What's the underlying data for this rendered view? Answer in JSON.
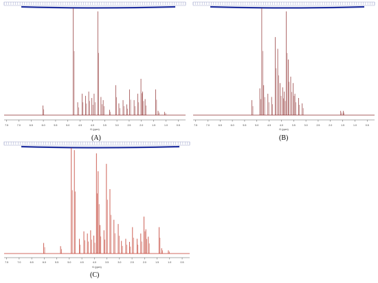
{
  "chart_data": [
    {
      "type": "line",
      "label": "(A)",
      "xlabel": "f1 (ppm)",
      "xlim": [
        7.6,
        0.2
      ],
      "x_reversed": true,
      "x_ticks": [
        "7.5",
        "7.0",
        "6.5",
        "6.0",
        "5.5",
        "5.0",
        "4.5",
        "4.0",
        "3.5",
        "3.0",
        "2.5",
        "2.0",
        "1.5",
        "1.0",
        "0.5"
      ],
      "line_color": "#8b2a2a",
      "integration_bar_color": "#1f2f9f",
      "peaks": [
        {
          "ppm": 6.02,
          "height": 0.09
        },
        {
          "ppm": 4.78,
          "height": 1.0
        },
        {
          "ppm": 4.6,
          "height": 0.12
        },
        {
          "ppm": 4.42,
          "height": 0.2
        },
        {
          "ppm": 4.28,
          "height": 0.18
        },
        {
          "ppm": 4.15,
          "height": 0.22
        },
        {
          "ppm": 4.02,
          "height": 0.16
        },
        {
          "ppm": 3.93,
          "height": 0.2
        },
        {
          "ppm": 3.78,
          "height": 0.97
        },
        {
          "ppm": 3.65,
          "height": 0.17
        },
        {
          "ppm": 3.56,
          "height": 0.14
        },
        {
          "ppm": 3.3,
          "height": 0.05
        },
        {
          "ppm": 3.05,
          "height": 0.28
        },
        {
          "ppm": 2.92,
          "height": 0.11
        },
        {
          "ppm": 2.75,
          "height": 0.14
        },
        {
          "ppm": 2.6,
          "height": 0.1
        },
        {
          "ppm": 2.48,
          "height": 0.24
        },
        {
          "ppm": 2.3,
          "height": 0.14
        },
        {
          "ppm": 2.15,
          "height": 0.2
        },
        {
          "ppm": 2.02,
          "height": 0.34
        },
        {
          "ppm": 1.95,
          "height": 0.22
        },
        {
          "ppm": 1.85,
          "height": 0.15
        },
        {
          "ppm": 1.42,
          "height": 0.24
        },
        {
          "ppm": 1.32,
          "height": 0.04
        },
        {
          "ppm": 1.05,
          "height": 0.03
        }
      ]
    },
    {
      "type": "line",
      "label": "(B)",
      "xlabel": "f1 (ppm)",
      "xlim": [
        7.6,
        0.2
      ],
      "x_reversed": true,
      "x_ticks": [
        "7.5",
        "7.0",
        "6.5",
        "6.0",
        "5.5",
        "5.0",
        "4.5",
        "4.0",
        "3.5",
        "3.0",
        "2.5",
        "2.0",
        "1.5",
        "1.0",
        "0.5"
      ],
      "line_color": "#8b2a2a",
      "integration_bar_color": "#1f2f9f",
      "peaks": [
        {
          "ppm": 5.2,
          "height": 0.14
        },
        {
          "ppm": 4.88,
          "height": 0.25
        },
        {
          "ppm": 4.8,
          "height": 1.0
        },
        {
          "ppm": 4.72,
          "height": 0.28
        },
        {
          "ppm": 4.55,
          "height": 0.2
        },
        {
          "ppm": 4.4,
          "height": 0.17
        },
        {
          "ppm": 4.25,
          "height": 0.73
        },
        {
          "ppm": 4.15,
          "height": 0.62
        },
        {
          "ppm": 4.05,
          "height": 0.3
        },
        {
          "ppm": 3.95,
          "height": 0.26
        },
        {
          "ppm": 3.88,
          "height": 0.22
        },
        {
          "ppm": 3.8,
          "height": 0.97
        },
        {
          "ppm": 3.72,
          "height": 0.52
        },
        {
          "ppm": 3.62,
          "height": 0.36
        },
        {
          "ppm": 3.52,
          "height": 0.3
        },
        {
          "ppm": 3.45,
          "height": 0.2
        },
        {
          "ppm": 3.3,
          "height": 0.16
        },
        {
          "ppm": 3.15,
          "height": 0.11
        },
        {
          "ppm": 1.58,
          "height": 0.04
        },
        {
          "ppm": 1.48,
          "height": 0.04
        }
      ]
    },
    {
      "type": "line",
      "label": "(C)",
      "xlabel": "f1 (ppm)",
      "xlim": [
        7.6,
        0.2
      ],
      "x_reversed": true,
      "x_ticks": [
        "7.5",
        "7.0",
        "6.5",
        "6.0",
        "5.5",
        "5.0",
        "4.5",
        "4.0",
        "3.5",
        "3.0",
        "2.5",
        "2.0",
        "1.5",
        "1.0",
        "0.5"
      ],
      "line_color": "#c0392b",
      "integration_bar_color": "#1f2f9f",
      "peaks": [
        {
          "ppm": 6.02,
          "height": 0.1
        },
        {
          "ppm": 5.35,
          "height": 0.07
        },
        {
          "ppm": 4.92,
          "height": 1.0
        },
        {
          "ppm": 4.8,
          "height": 0.98
        },
        {
          "ppm": 4.6,
          "height": 0.14
        },
        {
          "ppm": 4.42,
          "height": 0.21
        },
        {
          "ppm": 4.28,
          "height": 0.19
        },
        {
          "ppm": 4.15,
          "height": 0.22
        },
        {
          "ppm": 4.02,
          "height": 0.17
        },
        {
          "ppm": 3.92,
          "height": 0.95
        },
        {
          "ppm": 3.85,
          "height": 0.78
        },
        {
          "ppm": 3.78,
          "height": 0.27
        },
        {
          "ppm": 3.62,
          "height": 0.22
        },
        {
          "ppm": 3.52,
          "height": 0.85
        },
        {
          "ppm": 3.38,
          "height": 0.61
        },
        {
          "ppm": 3.22,
          "height": 0.32
        },
        {
          "ppm": 3.05,
          "height": 0.28
        },
        {
          "ppm": 2.92,
          "height": 0.12
        },
        {
          "ppm": 2.75,
          "height": 0.14
        },
        {
          "ppm": 2.6,
          "height": 0.11
        },
        {
          "ppm": 2.48,
          "height": 0.25
        },
        {
          "ppm": 2.3,
          "height": 0.14
        },
        {
          "ppm": 2.15,
          "height": 0.19
        },
        {
          "ppm": 2.02,
          "height": 0.35
        },
        {
          "ppm": 1.95,
          "height": 0.23
        },
        {
          "ppm": 1.85,
          "height": 0.16
        },
        {
          "ppm": 1.42,
          "height": 0.25
        },
        {
          "ppm": 1.32,
          "height": 0.05
        },
        {
          "ppm": 1.05,
          "height": 0.03
        }
      ]
    }
  ]
}
